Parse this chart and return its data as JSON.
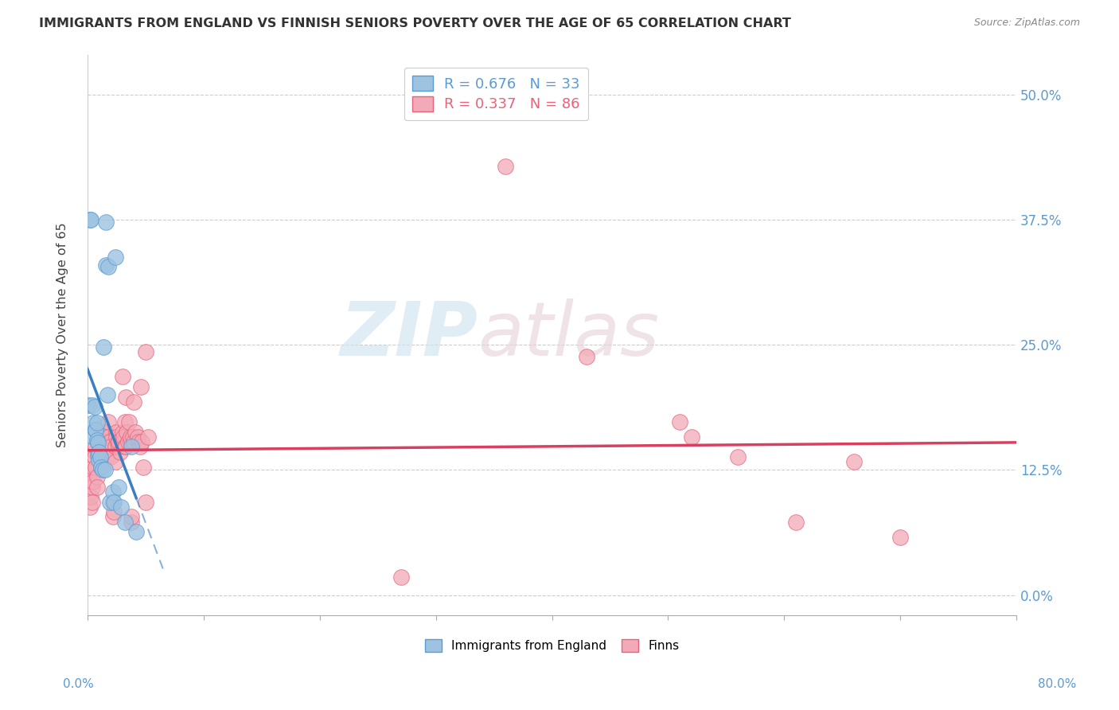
{
  "title": "IMMIGRANTS FROM ENGLAND VS FINNISH SENIORS POVERTY OVER THE AGE OF 65 CORRELATION CHART",
  "source": "Source: ZipAtlas.com",
  "ylabel": "Seniors Poverty Over the Age of 65",
  "ytick_labels": [
    "0.0%",
    "12.5%",
    "25.0%",
    "37.5%",
    "50.0%"
  ],
  "ytick_values": [
    0.0,
    0.125,
    0.25,
    0.375,
    0.5
  ],
  "xmin": 0.0,
  "xmax": 0.8,
  "ymin": -0.02,
  "ymax": 0.54,
  "legend_r_colors": [
    "#5b9bd5",
    "#e8627a"
  ],
  "watermark_zip": "ZIP",
  "watermark_atlas": "atlas",
  "england_color": "#9dc3e0",
  "england_edge": "#5b9bd5",
  "finns_color": "#f2aab8",
  "finns_edge": "#e8627a",
  "trend_england_color": "#3a7fc1",
  "trend_finns_color": "#d94060",
  "england_points": [
    [
      0.001,
      0.19
    ],
    [
      0.002,
      0.375
    ],
    [
      0.003,
      0.375
    ],
    [
      0.004,
      0.19
    ],
    [
      0.005,
      0.172
    ],
    [
      0.005,
      0.158
    ],
    [
      0.006,
      0.188
    ],
    [
      0.007,
      0.165
    ],
    [
      0.007,
      0.165
    ],
    [
      0.008,
      0.172
    ],
    [
      0.008,
      0.155
    ],
    [
      0.009,
      0.152
    ],
    [
      0.009,
      0.14
    ],
    [
      0.01,
      0.135
    ],
    [
      0.01,
      0.143
    ],
    [
      0.011,
      0.138
    ],
    [
      0.012,
      0.128
    ],
    [
      0.013,
      0.125
    ],
    [
      0.014,
      0.248
    ],
    [
      0.015,
      0.125
    ],
    [
      0.016,
      0.33
    ],
    [
      0.016,
      0.373
    ],
    [
      0.017,
      0.2
    ],
    [
      0.018,
      0.328
    ],
    [
      0.019,
      0.093
    ],
    [
      0.022,
      0.103
    ],
    [
      0.023,
      0.093
    ],
    [
      0.024,
      0.338
    ],
    [
      0.027,
      0.108
    ],
    [
      0.029,
      0.088
    ],
    [
      0.032,
      0.073
    ],
    [
      0.038,
      0.148
    ],
    [
      0.042,
      0.063
    ]
  ],
  "finns_points": [
    [
      0.001,
      0.1
    ],
    [
      0.002,
      0.113
    ],
    [
      0.002,
      0.088
    ],
    [
      0.003,
      0.123
    ],
    [
      0.003,
      0.098
    ],
    [
      0.004,
      0.108
    ],
    [
      0.004,
      0.093
    ],
    [
      0.005,
      0.128
    ],
    [
      0.005,
      0.113
    ],
    [
      0.006,
      0.143
    ],
    [
      0.006,
      0.138
    ],
    [
      0.007,
      0.148
    ],
    [
      0.007,
      0.128
    ],
    [
      0.008,
      0.118
    ],
    [
      0.008,
      0.108
    ],
    [
      0.009,
      0.153
    ],
    [
      0.009,
      0.153
    ],
    [
      0.01,
      0.143
    ],
    [
      0.01,
      0.138
    ],
    [
      0.011,
      0.153
    ],
    [
      0.011,
      0.138
    ],
    [
      0.012,
      0.128
    ],
    [
      0.012,
      0.158
    ],
    [
      0.013,
      0.148
    ],
    [
      0.013,
      0.163
    ],
    [
      0.014,
      0.153
    ],
    [
      0.015,
      0.163
    ],
    [
      0.015,
      0.153
    ],
    [
      0.016,
      0.148
    ],
    [
      0.016,
      0.163
    ],
    [
      0.017,
      0.153
    ],
    [
      0.017,
      0.138
    ],
    [
      0.018,
      0.173
    ],
    [
      0.018,
      0.158
    ],
    [
      0.019,
      0.153
    ],
    [
      0.02,
      0.148
    ],
    [
      0.02,
      0.138
    ],
    [
      0.022,
      0.078
    ],
    [
      0.022,
      0.093
    ],
    [
      0.023,
      0.083
    ],
    [
      0.024,
      0.148
    ],
    [
      0.024,
      0.133
    ],
    [
      0.025,
      0.163
    ],
    [
      0.025,
      0.158
    ],
    [
      0.026,
      0.153
    ],
    [
      0.027,
      0.148
    ],
    [
      0.027,
      0.153
    ],
    [
      0.028,
      0.143
    ],
    [
      0.03,
      0.218
    ],
    [
      0.03,
      0.163
    ],
    [
      0.031,
      0.153
    ],
    [
      0.031,
      0.158
    ],
    [
      0.032,
      0.148
    ],
    [
      0.032,
      0.173
    ],
    [
      0.033,
      0.198
    ],
    [
      0.033,
      0.148
    ],
    [
      0.034,
      0.163
    ],
    [
      0.035,
      0.153
    ],
    [
      0.036,
      0.173
    ],
    [
      0.037,
      0.153
    ],
    [
      0.037,
      0.158
    ],
    [
      0.038,
      0.073
    ],
    [
      0.038,
      0.078
    ],
    [
      0.039,
      0.158
    ],
    [
      0.04,
      0.153
    ],
    [
      0.04,
      0.193
    ],
    [
      0.041,
      0.163
    ],
    [
      0.043,
      0.158
    ],
    [
      0.044,
      0.153
    ],
    [
      0.045,
      0.148
    ],
    [
      0.046,
      0.208
    ],
    [
      0.047,
      0.153
    ],
    [
      0.048,
      0.128
    ],
    [
      0.05,
      0.093
    ],
    [
      0.05,
      0.243
    ],
    [
      0.052,
      0.158
    ],
    [
      0.27,
      0.018
    ],
    [
      0.36,
      0.428
    ],
    [
      0.43,
      0.238
    ],
    [
      0.51,
      0.173
    ],
    [
      0.52,
      0.158
    ],
    [
      0.56,
      0.138
    ],
    [
      0.61,
      0.073
    ],
    [
      0.66,
      0.133
    ],
    [
      0.7,
      0.058
    ]
  ]
}
